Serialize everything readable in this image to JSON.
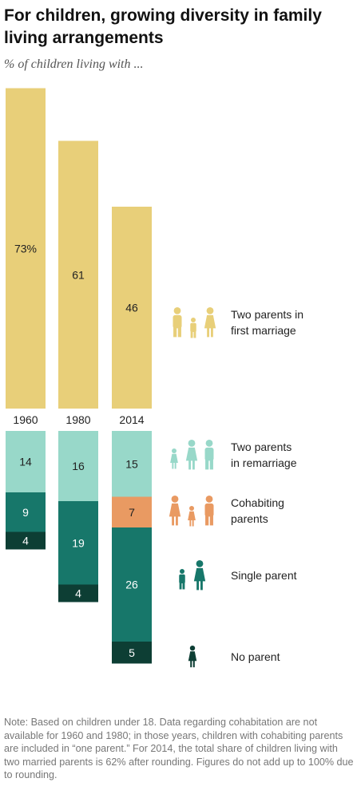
{
  "title": "For children, growing diversity in family living arrangements",
  "subtitle": "% of children living with ...",
  "note": "Note: Based on children under 18. Data regarding cohabitation are not available for 1960 and 1980; in those years, children with cohabiting parents are included in “one parent.” For 2014, the total share of children living with two married parents is 62% after rounding. Figures do not add up to 100% due to rounding.",
  "colors": {
    "first_marriage": "#e8cf79",
    "remarriage": "#98d8c9",
    "cohabiting": "#e99a62",
    "single_parent": "#17776a",
    "no_parent": "#0d3e34"
  },
  "chart_data": {
    "type": "bar",
    "categories": [
      "1960",
      "1980",
      "2014"
    ],
    "series": [
      {
        "name": "Two parents in first marriage",
        "values": [
          73,
          61,
          46
        ],
        "labels": [
          "73%",
          "61",
          "46"
        ],
        "icon": "family-two-parents-icon"
      },
      {
        "name": "Two parents in remarriage",
        "values": [
          14,
          16,
          15
        ],
        "labels": [
          "14",
          "16",
          "15"
        ],
        "icon": "blended-family-icon"
      },
      {
        "name": "Cohabiting parents",
        "values": [
          null,
          null,
          7
        ],
        "labels": [
          "",
          "",
          "7"
        ],
        "icon": "cohabiting-family-icon"
      },
      {
        "name": "Single parent",
        "values": [
          9,
          19,
          26
        ],
        "labels": [
          "9",
          "19",
          "26"
        ],
        "icon": "single-parent-icon"
      },
      {
        "name": "No parent",
        "values": [
          4,
          4,
          5
        ],
        "labels": [
          "4",
          "4",
          "5"
        ],
        "icon": "child-icon"
      }
    ]
  },
  "legend": [
    {
      "line1": "Two parents in",
      "line2": "first marriage"
    },
    {
      "line1": "Two parents",
      "line2": "in remarriage"
    },
    {
      "line1": "Cohabiting",
      "line2": "parents"
    },
    {
      "line1": "Single parent",
      "line2": ""
    },
    {
      "line1": "No parent",
      "line2": ""
    }
  ]
}
